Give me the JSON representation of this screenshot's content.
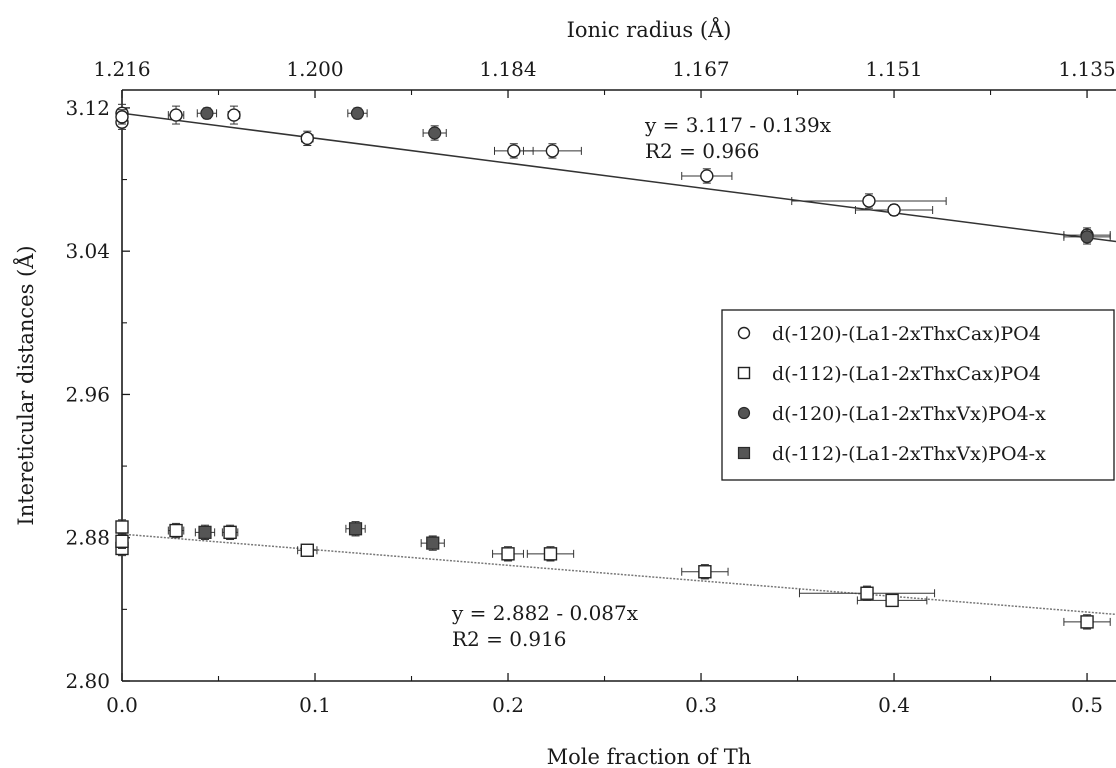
{
  "chart_data": {
    "type": "scatter",
    "title": "",
    "xlabel": "Mole fraction of Th",
    "ylabel": "Intereticular distances (Å)",
    "x2label": "Ionic radius (Å)",
    "xlim": [
      0,
      0.515
    ],
    "ylim": [
      2.8,
      3.13
    ],
    "x_ticks": [
      "0.0",
      "0.1",
      "0.2",
      "0.3",
      "0.4",
      "0.5"
    ],
    "y_ticks": [
      "2.80",
      "2.88",
      "2.96",
      "3.04",
      "3.12"
    ],
    "top_axis": {
      "ticks": [
        {
          "x": 0.0,
          "label": "1.216"
        },
        {
          "x": 0.1,
          "label": "1.200"
        },
        {
          "x": 0.2,
          "label": "1.184"
        },
        {
          "x": 0.3,
          "label": "1.167"
        },
        {
          "x": 0.4,
          "label": "1.151"
        },
        {
          "x": 0.5,
          "label": "1.135"
        }
      ]
    },
    "legend_position": "right-middle",
    "series": [
      {
        "name": "d(-120)-(La1-2xThxCax)PO4",
        "marker": "open-circle",
        "color": "#222222",
        "points": [
          {
            "x": 0.0,
            "y": 3.117,
            "yerr": 0.005,
            "xerr": 0
          },
          {
            "x": 0.0,
            "y": 3.112,
            "yerr": 0.004,
            "xerr": 0
          },
          {
            "x": 0.0,
            "y": 3.115,
            "yerr": 0.004,
            "xerr": 0
          },
          {
            "x": 0.028,
            "y": 3.116,
            "yerr": 0.005,
            "xerr": 0.004
          },
          {
            "x": 0.058,
            "y": 3.116,
            "yerr": 0.005,
            "xerr": 0.003
          },
          {
            "x": 0.096,
            "y": 3.103,
            "yerr": 0.004,
            "xerr": 0.003
          },
          {
            "x": 0.203,
            "y": 3.096,
            "yerr": 0.004,
            "xerr": 0.01
          },
          {
            "x": 0.223,
            "y": 3.096,
            "yerr": 0.004,
            "xerr": 0.015
          },
          {
            "x": 0.303,
            "y": 3.082,
            "yerr": 0.004,
            "xerr": 0.013
          },
          {
            "x": 0.387,
            "y": 3.068,
            "yerr": 0.004,
            "xerr": 0.04
          },
          {
            "x": 0.4,
            "y": 3.063,
            "yerr": 0.003,
            "xerr": 0.02
          },
          {
            "x": 0.5,
            "y": 3.049,
            "yerr": 0.004,
            "xerr": 0.012
          }
        ]
      },
      {
        "name": "d(-112)-(La1-2xThxCax)PO4",
        "marker": "open-square",
        "color": "#222222",
        "points": [
          {
            "x": 0.0,
            "y": 2.886,
            "yerr": 0.004,
            "xerr": 0
          },
          {
            "x": 0.0,
            "y": 2.874,
            "yerr": 0.004,
            "xerr": 0
          },
          {
            "x": 0.0,
            "y": 2.878,
            "yerr": 0.004,
            "xerr": 0
          },
          {
            "x": 0.028,
            "y": 2.884,
            "yerr": 0.004,
            "xerr": 0.004
          },
          {
            "x": 0.056,
            "y": 2.883,
            "yerr": 0.004,
            "xerr": 0.004
          },
          {
            "x": 0.096,
            "y": 2.873,
            "yerr": 0.003,
            "xerr": 0.005
          },
          {
            "x": 0.2,
            "y": 2.871,
            "yerr": 0.004,
            "xerr": 0.008
          },
          {
            "x": 0.222,
            "y": 2.871,
            "yerr": 0.004,
            "xerr": 0.012
          },
          {
            "x": 0.302,
            "y": 2.861,
            "yerr": 0.004,
            "xerr": 0.012
          },
          {
            "x": 0.386,
            "y": 2.849,
            "yerr": 0.004,
            "xerr": 0.035
          },
          {
            "x": 0.399,
            "y": 2.845,
            "yerr": 0.003,
            "xerr": 0.018
          },
          {
            "x": 0.5,
            "y": 2.833,
            "yerr": 0.004,
            "xerr": 0.012
          }
        ]
      },
      {
        "name": "d(-120)-(La1-2xThxVx)PO4-x",
        "marker": "filled-circle",
        "color": "#555555",
        "points": [
          {
            "x": 0.044,
            "y": 3.117,
            "yerr": 0.003,
            "xerr": 0.005
          },
          {
            "x": 0.122,
            "y": 3.117,
            "yerr": 0.003,
            "xerr": 0.005
          },
          {
            "x": 0.162,
            "y": 3.106,
            "yerr": 0.004,
            "xerr": 0.006
          },
          {
            "x": 0.5,
            "y": 3.048,
            "yerr": 0.004,
            "xerr": 0.012
          }
        ]
      },
      {
        "name": "d(-112)-(La1-2xThxVx)PO4-x",
        "marker": "filled-square",
        "color": "#555555",
        "points": [
          {
            "x": 0.043,
            "y": 2.883,
            "yerr": 0.004,
            "xerr": 0.005
          },
          {
            "x": 0.121,
            "y": 2.885,
            "yerr": 0.004,
            "xerr": 0.005
          },
          {
            "x": 0.161,
            "y": 2.877,
            "yerr": 0.004,
            "xerr": 0.006
          }
        ]
      }
    ],
    "fits": [
      {
        "intercept": 3.117,
        "slope": -0.139,
        "line_color": "#333333",
        "dashed": false,
        "equation": "y = 3.117 - 0.139x",
        "r2_label": "R2 = 0.966"
      },
      {
        "intercept": 2.882,
        "slope": -0.087,
        "line_color": "#777777",
        "dashed": true,
        "equation": "y = 2.882 - 0.087x",
        "r2_label": "R2 = 0.916"
      }
    ]
  }
}
